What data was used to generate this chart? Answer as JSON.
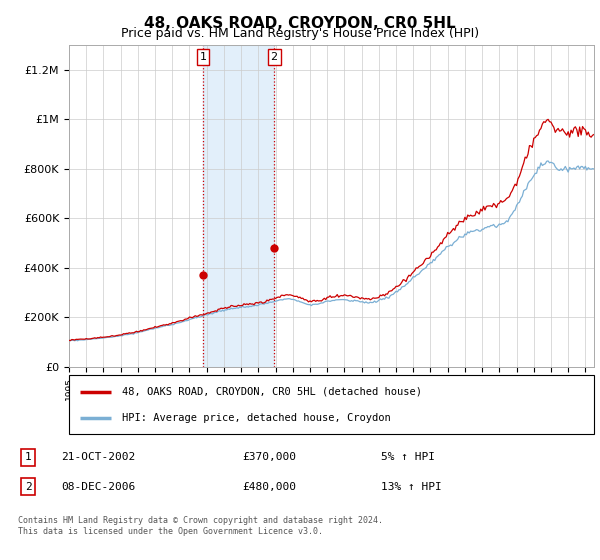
{
  "title": "48, OAKS ROAD, CROYDON, CR0 5HL",
  "subtitle": "Price paid vs. HM Land Registry's House Price Index (HPI)",
  "title_fontsize": 11,
  "subtitle_fontsize": 9,
  "ylabel_ticks": [
    "£0",
    "£200K",
    "£400K",
    "£600K",
    "£800K",
    "£1M",
    "£1.2M"
  ],
  "ytick_values": [
    0,
    200000,
    400000,
    600000,
    800000,
    1000000,
    1200000
  ],
  "ylim": [
    0,
    1300000
  ],
  "sale1_x": 2002.79,
  "sale1_y": 370000,
  "sale2_x": 2006.92,
  "sale2_y": 480000,
  "shade_color": "#d6e9f8",
  "shade_alpha": 0.7,
  "hpi_color": "#7bafd4",
  "price_color": "#cc0000",
  "vline_color": "#cc0000",
  "vline_style": ":",
  "grid_color": "#cccccc",
  "background_color": "#ffffff",
  "legend_entry1": "48, OAKS ROAD, CROYDON, CR0 5HL (detached house)",
  "legend_entry2": "HPI: Average price, detached house, Croydon",
  "annotation1_date": "21-OCT-2002",
  "annotation1_price": "£370,000",
  "annotation1_hpi": "5% ↑ HPI",
  "annotation2_date": "08-DEC-2006",
  "annotation2_price": "£480,000",
  "annotation2_hpi": "13% ↑ HPI",
  "footer": "Contains HM Land Registry data © Crown copyright and database right 2024.\nThis data is licensed under the Open Government Licence v3.0.",
  "xlim_left": 1995.0,
  "xlim_right": 2025.5
}
